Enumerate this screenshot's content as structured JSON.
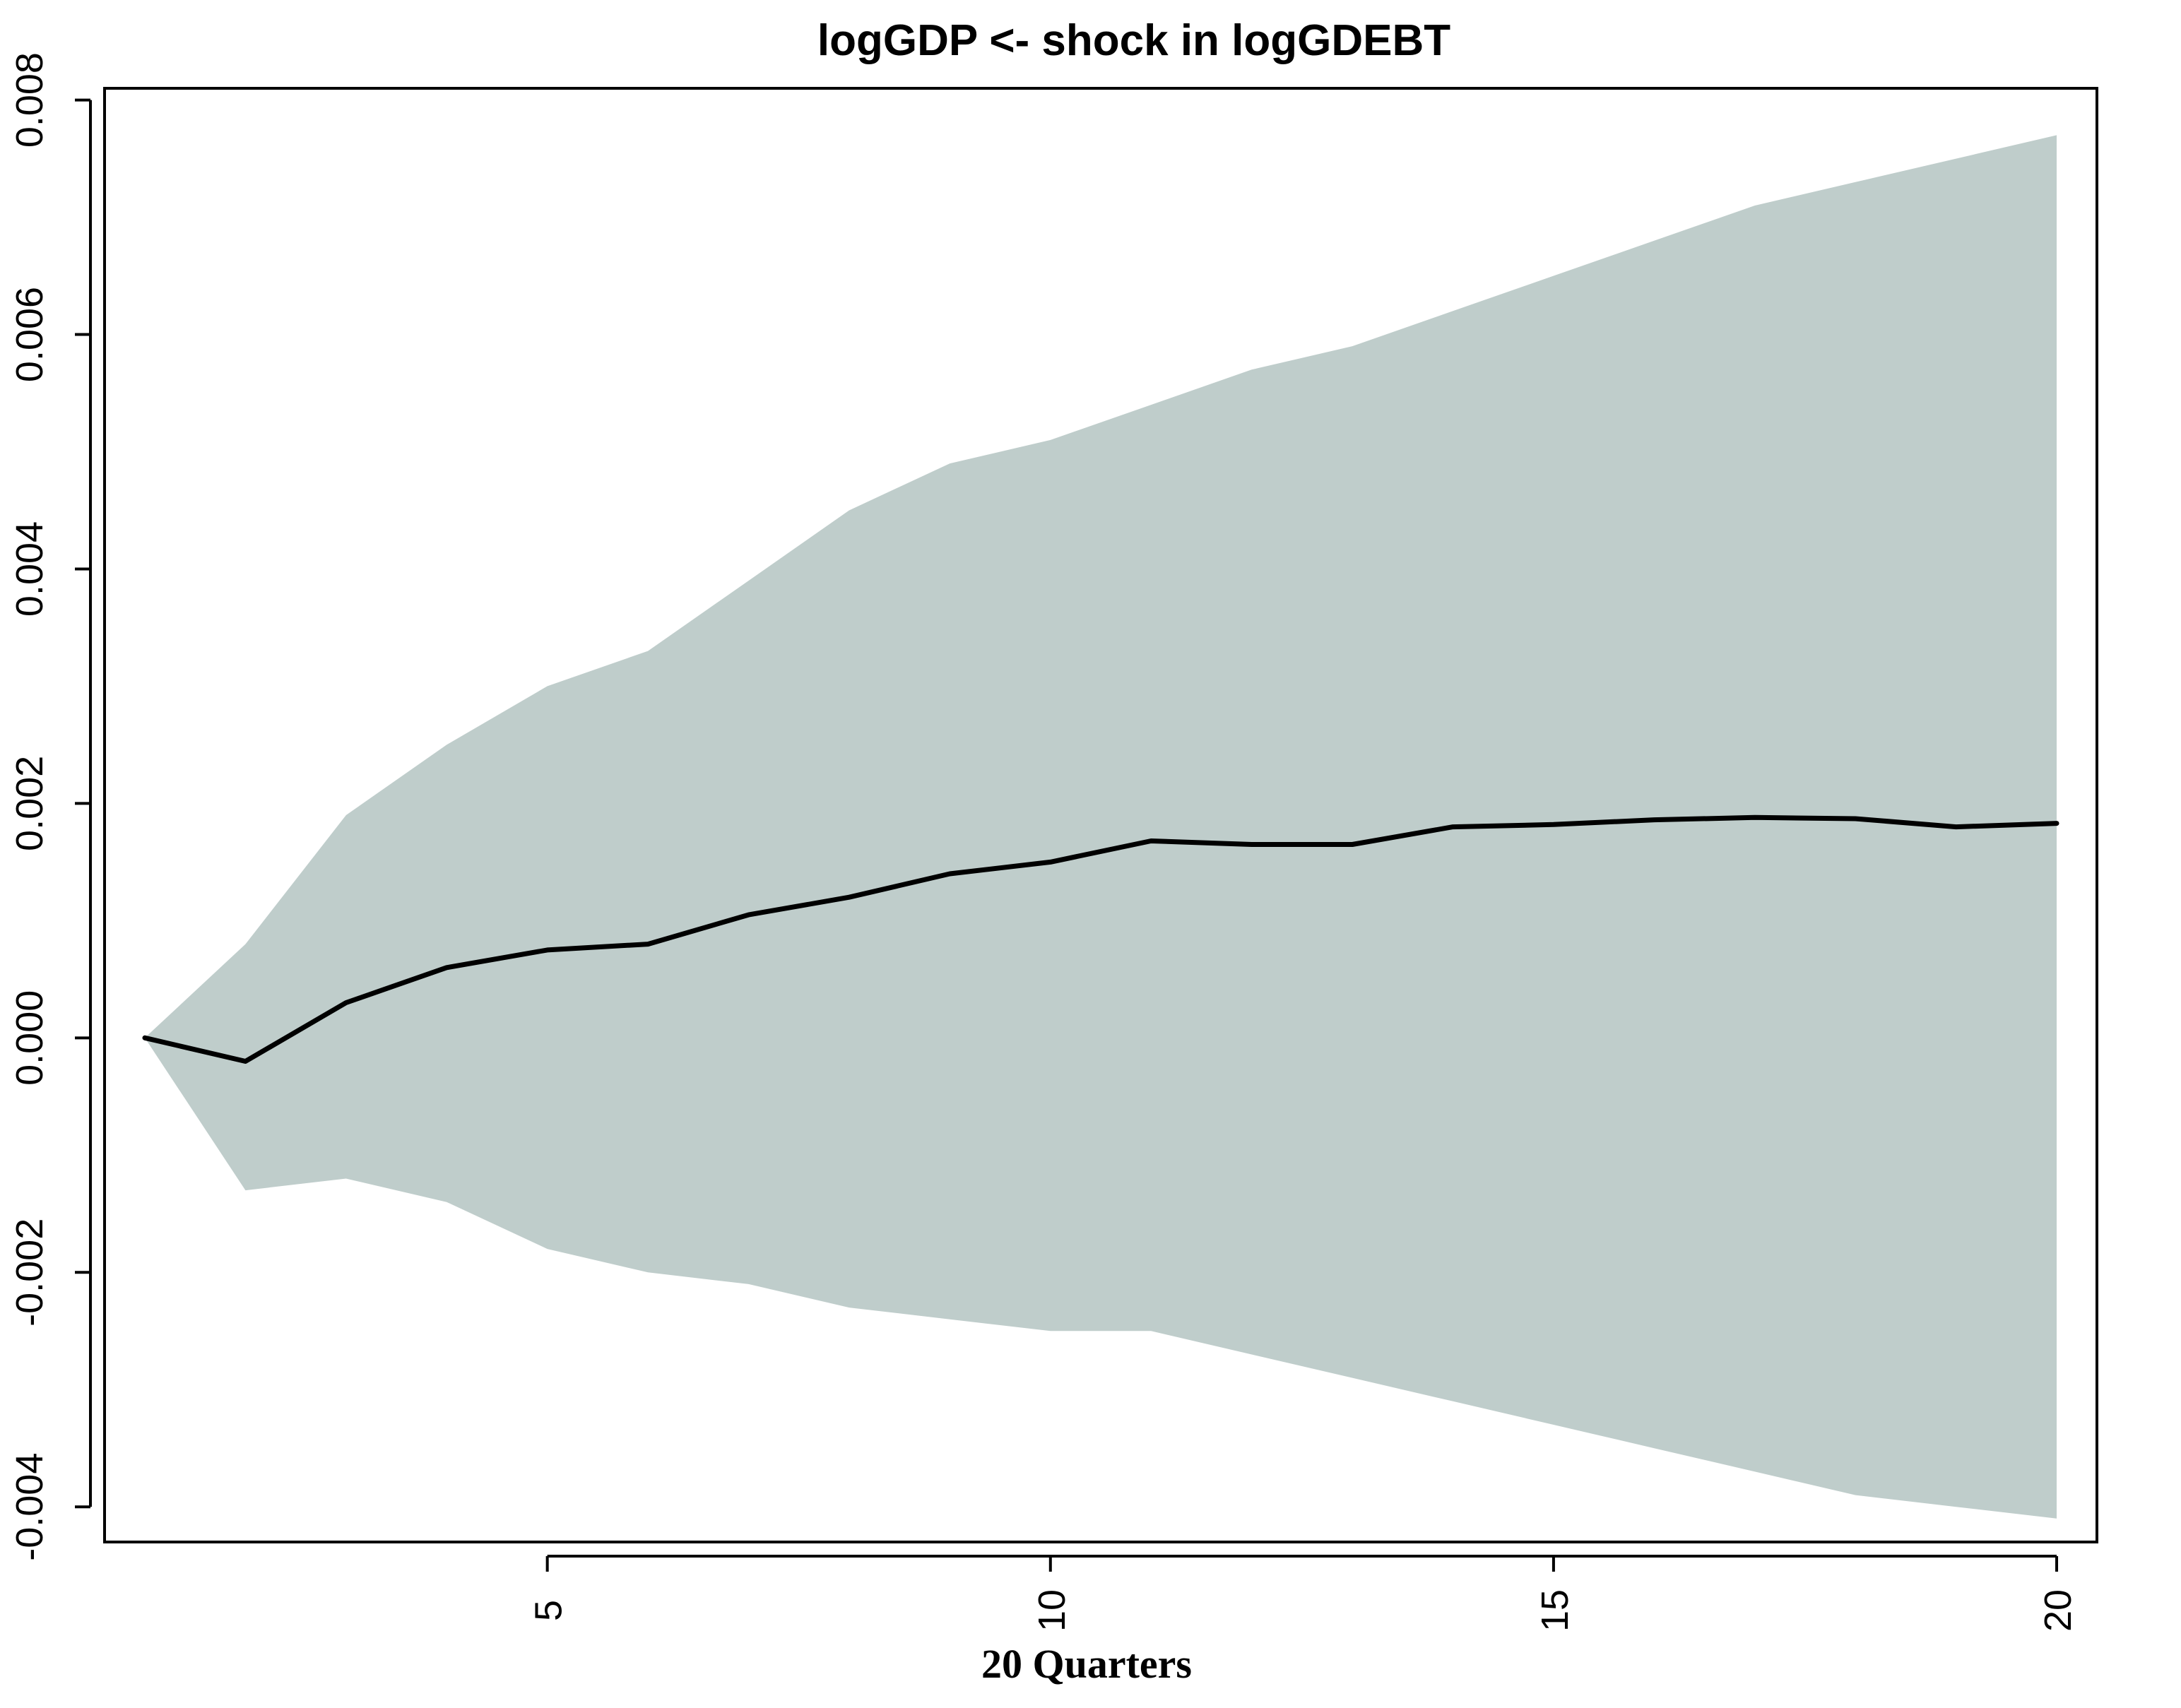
{
  "chart_data": {
    "type": "area",
    "title": "logGDP <- shock in logGDEBT",
    "xlabel": "20 Quarters",
    "ylabel": "",
    "xlim": [
      0.6,
      20.4
    ],
    "ylim": [
      -0.0043,
      0.0081
    ],
    "x_ticks": [
      5,
      10,
      15,
      20
    ],
    "x_tick_labels": [
      "5",
      "10",
      "15",
      "20"
    ],
    "y_ticks": [
      -0.004,
      -0.002,
      0.0,
      0.002,
      0.004,
      0.006,
      0.008
    ],
    "y_tick_labels": [
      "-0.004",
      "-0.002",
      "0.000",
      "0.002",
      "0.004",
      "0.006",
      "0.008"
    ],
    "grid": false,
    "legend": "none",
    "x": [
      1,
      2,
      3,
      4,
      5,
      6,
      7,
      8,
      9,
      10,
      11,
      12,
      13,
      14,
      15,
      16,
      17,
      18,
      19,
      20
    ],
    "series": [
      {
        "values": [
          0.0,
          -0.0002,
          0.0003,
          0.0006,
          0.00075,
          0.0008,
          0.00105,
          0.0012,
          0.0014,
          0.0015,
          0.00168,
          0.00165,
          0.00165,
          0.0018,
          0.00182,
          0.00186,
          0.00188,
          0.00187,
          0.0018,
          0.00183
        ],
        "color": "#000000"
      }
    ],
    "band": {
      "upper": [
        0.0,
        0.0008,
        0.0019,
        0.0025,
        0.003,
        0.0033,
        0.0039,
        0.0045,
        0.0049,
        0.0051,
        0.0054,
        0.0057,
        0.0059,
        0.0062,
        0.0065,
        0.0068,
        0.0071,
        0.0073,
        0.0075,
        0.0077
      ],
      "lower": [
        0.0,
        -0.0013,
        -0.0012,
        -0.0014,
        -0.0018,
        -0.002,
        -0.0021,
        -0.0023,
        -0.0024,
        -0.0025,
        -0.0025,
        -0.0027,
        -0.0029,
        -0.0031,
        -0.0033,
        -0.0035,
        -0.0037,
        -0.0039,
        -0.004,
        -0.0041
      ],
      "color": "#bfcdcb"
    }
  }
}
